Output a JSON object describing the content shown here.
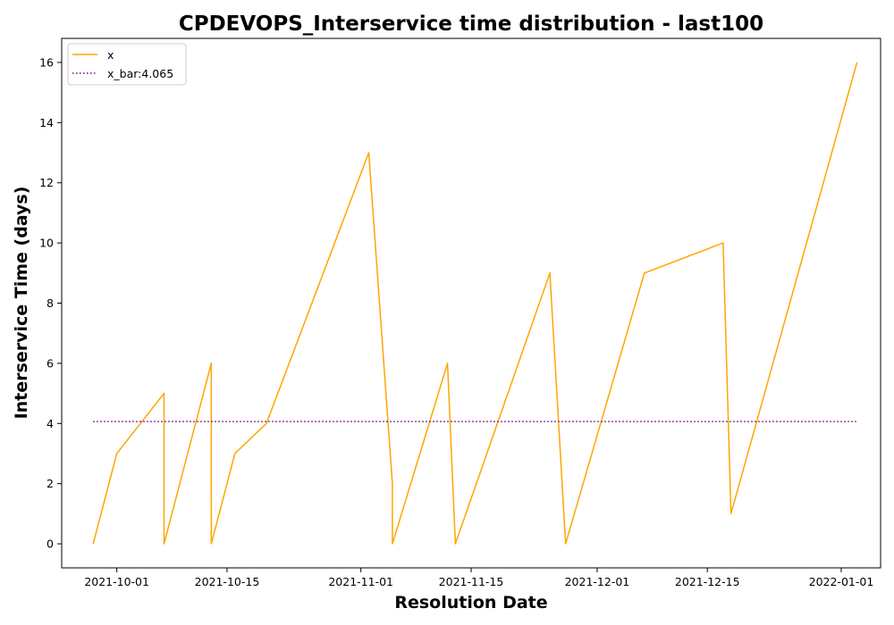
{
  "chart_data": {
    "type": "line",
    "title": "CPDEVOPS_Interservice time distribution - last100",
    "xlabel": "Resolution Date",
    "ylabel": "Interservice Time (days)",
    "xlim": [
      "2021-09-24",
      "2022-01-06"
    ],
    "ylim": [
      -0.8,
      16.8
    ],
    "xticks": [
      "2021-10-01",
      "2021-10-15",
      "2021-11-01",
      "2021-11-15",
      "2021-12-01",
      "2021-12-15",
      "2022-01-01"
    ],
    "yticks": [
      0,
      2,
      4,
      6,
      8,
      10,
      12,
      14,
      16
    ],
    "grid": false,
    "legend_position": "upper-left",
    "series": [
      {
        "name": "x",
        "color": "#ffa500",
        "style": "solid",
        "points": [
          {
            "x": "2021-09-28",
            "y": 0
          },
          {
            "x": "2021-10-01",
            "y": 3
          },
          {
            "x": "2021-10-07",
            "y": 5
          },
          {
            "x": "2021-10-07",
            "y": 0
          },
          {
            "x": "2021-10-13",
            "y": 6
          },
          {
            "x": "2021-10-13",
            "y": 0
          },
          {
            "x": "2021-10-16",
            "y": 3
          },
          {
            "x": "2021-10-20",
            "y": 4
          },
          {
            "x": "2021-11-02",
            "y": 13
          },
          {
            "x": "2021-11-05",
            "y": 2
          },
          {
            "x": "2021-11-05",
            "y": 0
          },
          {
            "x": "2021-11-12",
            "y": 6
          },
          {
            "x": "2021-11-13",
            "y": 0
          },
          {
            "x": "2021-11-25",
            "y": 9
          },
          {
            "x": "2021-11-27",
            "y": 0
          },
          {
            "x": "2021-12-07",
            "y": 9
          },
          {
            "x": "2021-12-17",
            "y": 10
          },
          {
            "x": "2021-12-18",
            "y": 1
          },
          {
            "x": "2022-01-03",
            "y": 16
          }
        ]
      },
      {
        "name": "x_bar:4.065",
        "color": "#800080",
        "style": "dotted",
        "points": [
          {
            "x": "2021-09-28",
            "y": 4.065
          },
          {
            "x": "2022-01-03",
            "y": 4.065
          }
        ]
      }
    ]
  }
}
